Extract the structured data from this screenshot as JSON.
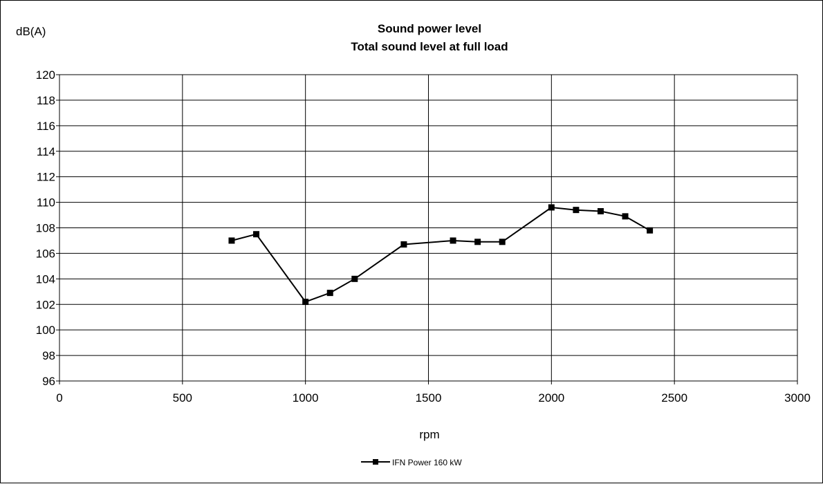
{
  "chart_data": {
    "type": "line",
    "title": "Sound power level",
    "subtitle": "Total sound level at full load",
    "xlabel": "rpm",
    "ylabel": "dB(A)",
    "xlim": [
      0,
      3000
    ],
    "ylim": [
      96,
      120
    ],
    "x_ticks": [
      0,
      500,
      1000,
      1500,
      2000,
      2500,
      3000
    ],
    "y_ticks": [
      96,
      98,
      100,
      102,
      104,
      106,
      108,
      110,
      112,
      114,
      116,
      118,
      120
    ],
    "grid": true,
    "legend_position": "bottom-center",
    "series": [
      {
        "name": "IFN Power 160 kW",
        "color": "#000000",
        "marker": "square",
        "x": [
          700,
          800,
          1000,
          1100,
          1200,
          1400,
          1600,
          1700,
          1800,
          2000,
          2100,
          2200,
          2300,
          2400
        ],
        "y": [
          107.0,
          107.5,
          102.2,
          102.9,
          104.0,
          106.7,
          107.0,
          106.9,
          106.9,
          109.6,
          109.4,
          109.3,
          108.9,
          107.8
        ]
      }
    ]
  }
}
